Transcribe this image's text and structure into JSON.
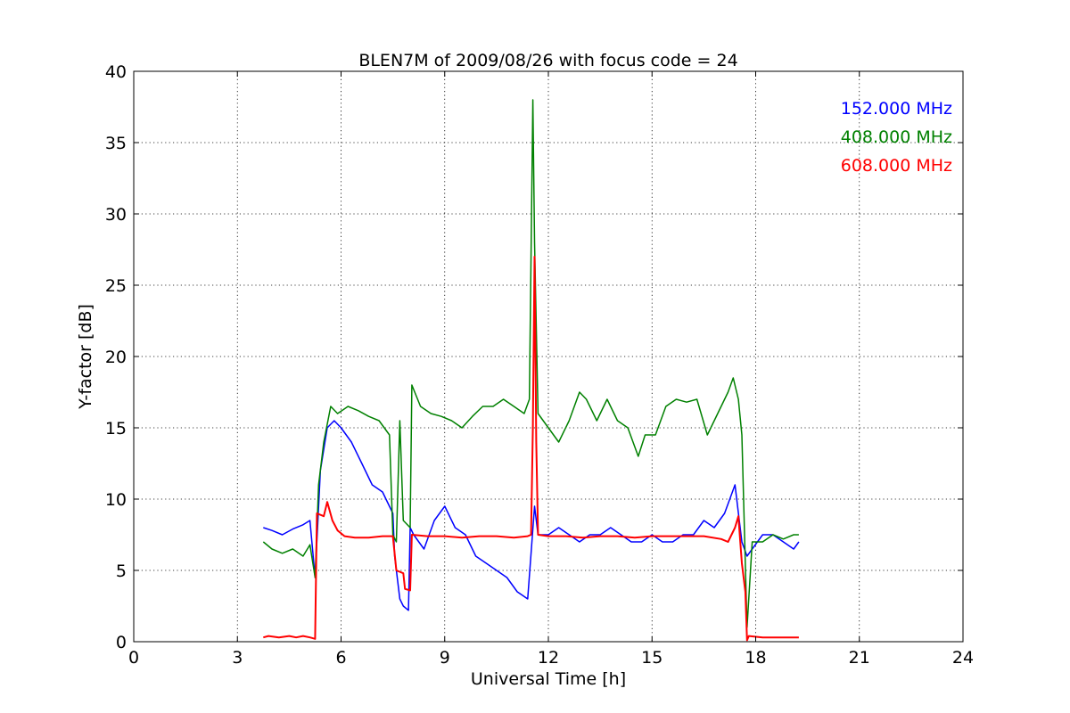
{
  "chart_data": {
    "type": "line",
    "title": "BLEN7M of 2009/08/26 with focus code = 24",
    "xlabel": "Universal Time [h]",
    "ylabel": "Y-factor [dB]",
    "xlim": [
      0,
      24
    ],
    "ylim": [
      0,
      40
    ],
    "xticks": [
      0,
      3,
      6,
      9,
      12,
      15,
      18,
      21,
      24
    ],
    "yticks": [
      0,
      5,
      10,
      15,
      20,
      25,
      30,
      35,
      40
    ],
    "grid": true,
    "legend_position": "top-right",
    "series": [
      {
        "name": "152.000 MHz",
        "color": "#0000ff",
        "x": [
          3.75,
          4.0,
          4.3,
          4.6,
          4.9,
          5.1,
          5.25,
          5.4,
          5.6,
          5.8,
          6.0,
          6.3,
          6.6,
          6.9,
          7.2,
          7.5,
          7.55,
          7.7,
          7.8,
          7.95,
          8.0,
          8.1,
          8.4,
          8.7,
          9.0,
          9.3,
          9.6,
          9.9,
          10.2,
          10.5,
          10.8,
          11.1,
          11.4,
          11.6,
          11.7,
          12.0,
          12.3,
          12.6,
          12.9,
          13.2,
          13.5,
          13.8,
          14.1,
          14.4,
          14.7,
          15.0,
          15.3,
          15.6,
          15.9,
          16.2,
          16.5,
          16.8,
          17.1,
          17.4,
          17.6,
          17.75,
          17.9,
          18.2,
          18.5,
          18.8,
          19.1,
          19.25
        ],
        "y": [
          8.0,
          7.8,
          7.5,
          7.9,
          8.2,
          8.5,
          4.5,
          12.0,
          15.0,
          15.5,
          15.0,
          14.0,
          12.5,
          11.0,
          10.5,
          9.0,
          6.0,
          3.0,
          2.5,
          2.2,
          8.0,
          7.5,
          6.5,
          8.5,
          9.5,
          8.0,
          7.5,
          6.0,
          5.5,
          5.0,
          4.5,
          3.5,
          3.0,
          9.5,
          7.5,
          7.5,
          8.0,
          7.5,
          7.0,
          7.5,
          7.5,
          8.0,
          7.5,
          7.0,
          7.0,
          7.5,
          7.0,
          7.0,
          7.5,
          7.5,
          8.5,
          8.0,
          9.0,
          11.0,
          7.0,
          6.0,
          6.5,
          7.5,
          7.5,
          7.0,
          6.5,
          7.0
        ]
      },
      {
        "name": "408.000 MHz",
        "color": "#008000",
        "x": [
          3.75,
          4.0,
          4.3,
          4.6,
          4.9,
          5.1,
          5.25,
          5.35,
          5.5,
          5.7,
          5.9,
          6.2,
          6.5,
          6.8,
          7.1,
          7.4,
          7.5,
          7.6,
          7.7,
          7.8,
          8.0,
          8.05,
          8.3,
          8.6,
          8.9,
          9.2,
          9.5,
          9.8,
          10.1,
          10.4,
          10.7,
          11.0,
          11.3,
          11.45,
          11.55,
          11.6,
          11.7,
          12.0,
          12.3,
          12.6,
          12.9,
          13.1,
          13.4,
          13.7,
          14.0,
          14.3,
          14.6,
          14.8,
          15.1,
          15.4,
          15.7,
          16.0,
          16.3,
          16.6,
          16.9,
          17.2,
          17.35,
          17.5,
          17.6,
          17.75,
          17.9,
          18.2,
          18.5,
          18.8,
          19.1,
          19.25
        ],
        "y": [
          7.0,
          6.5,
          6.2,
          6.5,
          6.0,
          6.8,
          4.5,
          11.0,
          14.0,
          16.5,
          16.0,
          16.5,
          16.2,
          15.8,
          15.5,
          14.5,
          7.5,
          7.0,
          15.5,
          8.5,
          8.0,
          18.0,
          16.5,
          16.0,
          15.8,
          15.5,
          15.0,
          15.8,
          16.5,
          16.5,
          17.0,
          16.5,
          16.0,
          17.0,
          38.0,
          28.0,
          16.0,
          15.0,
          14.0,
          15.5,
          17.5,
          17.0,
          15.5,
          17.0,
          15.5,
          15.0,
          13.0,
          14.5,
          14.5,
          16.5,
          17.0,
          16.8,
          17.0,
          14.5,
          16.0,
          17.5,
          18.5,
          17.0,
          14.5,
          1.0,
          7.0,
          7.0,
          7.5,
          7.2,
          7.5,
          7.5
        ]
      },
      {
        "name": "608.000 MHz",
        "color": "#ff0000",
        "x": [
          3.75,
          3.9,
          4.2,
          4.5,
          4.7,
          4.9,
          5.1,
          5.25,
          5.3,
          5.5,
          5.6,
          5.75,
          5.9,
          6.1,
          6.4,
          6.8,
          7.2,
          7.5,
          7.6,
          7.8,
          7.85,
          8.0,
          8.05,
          8.5,
          9.0,
          9.5,
          10.0,
          10.5,
          11.0,
          11.4,
          11.5,
          11.55,
          11.6,
          11.65,
          11.7,
          12.0,
          12.5,
          13.0,
          13.5,
          14.0,
          14.5,
          15.0,
          15.5,
          16.0,
          16.5,
          17.0,
          17.2,
          17.4,
          17.5,
          17.6,
          17.7,
          17.75,
          17.8,
          18.2,
          18.6,
          19.0,
          19.2,
          19.25
        ],
        "y": [
          0.3,
          0.4,
          0.3,
          0.4,
          0.3,
          0.4,
          0.3,
          0.2,
          9.0,
          8.8,
          9.8,
          8.5,
          7.8,
          7.4,
          7.3,
          7.3,
          7.4,
          7.4,
          5.0,
          4.8,
          3.7,
          3.6,
          7.5,
          7.4,
          7.4,
          7.3,
          7.4,
          7.4,
          7.3,
          7.4,
          7.5,
          15.0,
          27.0,
          14.0,
          7.5,
          7.4,
          7.4,
          7.3,
          7.4,
          7.4,
          7.3,
          7.4,
          7.4,
          7.4,
          7.4,
          7.2,
          7.0,
          8.0,
          8.8,
          5.5,
          3.5,
          0.1,
          0.4,
          0.3,
          0.3,
          0.3,
          0.3,
          0.3
        ]
      }
    ]
  }
}
